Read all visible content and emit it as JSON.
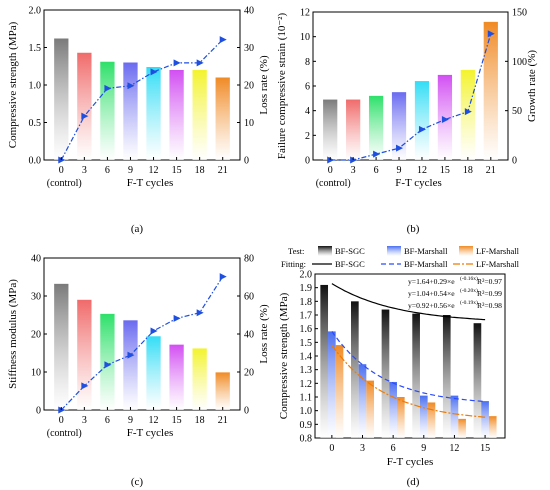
{
  "panels": [
    {
      "caption": "(a)",
      "chart_data": {
        "type": "bar",
        "title": "",
        "xlabel": "F-T cycles",
        "ylabel": "Compressive strength (MPa)",
        "y2label": "Loss rate (%)",
        "categories": [
          "0",
          "3",
          "6",
          "9",
          "12",
          "15",
          "18",
          "21"
        ],
        "xsub": "(control)",
        "ylim": [
          0,
          2.0
        ],
        "yticks": [
          "0.0",
          "0.5",
          "1.0",
          "1.5",
          "2.0"
        ],
        "y2lim": [
          0,
          40
        ],
        "y2ticks": [
          "0",
          "10",
          "20",
          "30",
          "40"
        ],
        "series": [
          {
            "kind": "bar",
            "values": [
              1.62,
              1.43,
              1.31,
              1.3,
              1.24,
              1.2,
              1.2,
              1.1
            ]
          },
          {
            "kind": "line",
            "axis": "right",
            "values": [
              0,
              11.7,
              19.1,
              19.8,
              23.5,
              25.9,
              25.9,
              32.1
            ]
          }
        ]
      }
    },
    {
      "caption": "(b)",
      "chart_data": {
        "type": "bar",
        "title": "",
        "xlabel": "F-T cycles",
        "ylabel": "Failure compressive strain (10⁻²)",
        "y2label": "Growth rate (%)",
        "categories": [
          "0",
          "3",
          "6",
          "9",
          "12",
          "15",
          "18",
          "21"
        ],
        "xsub": "(control)",
        "ylim": [
          0,
          12
        ],
        "yticks": [
          "0",
          "2",
          "4",
          "6",
          "8",
          "10",
          "12"
        ],
        "y2lim": [
          0,
          150
        ],
        "y2ticks": [
          "0",
          "50",
          "100",
          "150"
        ],
        "series": [
          {
            "kind": "bar",
            "values": [
              4.9,
              4.9,
              5.2,
              5.5,
              6.4,
              6.9,
              7.3,
              11.2
            ]
          },
          {
            "kind": "line",
            "axis": "right",
            "values": [
              0,
              0,
              6,
              12,
              31,
              41,
              49,
              128
            ]
          }
        ]
      }
    },
    {
      "caption": "(c)",
      "chart_data": {
        "type": "bar",
        "title": "",
        "xlabel": "F-T cycles",
        "ylabel": "Stiffness modulus (MPa)",
        "y2label": "Loss rate (%)",
        "categories": [
          "0",
          "3",
          "6",
          "9",
          "12",
          "15",
          "18",
          "21"
        ],
        "xsub": "(control)",
        "ylim": [
          0,
          40
        ],
        "yticks": [
          "0",
          "10",
          "20",
          "30",
          "40"
        ],
        "y2lim": [
          0,
          80
        ],
        "y2ticks": [
          "0",
          "20",
          "40",
          "60",
          "80"
        ],
        "series": [
          {
            "kind": "bar",
            "values": [
              33.2,
              29.0,
              25.3,
              23.6,
              19.4,
              17.2,
              16.2,
              9.9
            ]
          },
          {
            "kind": "line",
            "axis": "right",
            "values": [
              0,
              12.7,
              23.8,
              28.9,
              41.6,
              48.2,
              51.2,
              70.2
            ]
          }
        ]
      }
    },
    {
      "caption": "(d)",
      "chart_data": {
        "type": "bar",
        "title": "",
        "xlabel": "F-T cycles",
        "ylabel": "Compressive strength (MPa)",
        "categories": [
          "0",
          "3",
          "6",
          "9",
          "12",
          "15"
        ],
        "ylim": [
          0.8,
          2.0
        ],
        "yticks": [
          "0.8",
          "0.9",
          "1.0",
          "1.1",
          "1.2",
          "1.3",
          "1.4",
          "1.5",
          "1.6",
          "1.7",
          "1.8",
          "1.9",
          "2.0"
        ],
        "legend_test_label": "Test:",
        "legend_fit_label": "Fitting:",
        "series": [
          {
            "name": "BF-SGC",
            "color": "#111111",
            "values": [
              1.92,
              1.8,
              1.74,
              1.71,
              1.7,
              1.64
            ]
          },
          {
            "name": "BF-Marshall",
            "color": "#4a6ef0",
            "values": [
              1.58,
              1.34,
              1.21,
              1.11,
              1.11,
              1.07
            ]
          },
          {
            "name": "LF-Marshall",
            "color": "#f08a24",
            "values": [
              1.48,
              1.22,
              1.1,
              1.06,
              0.94,
              0.96
            ]
          }
        ],
        "fits": [
          {
            "name": "BF-SGC",
            "color": "#000000",
            "dash": "",
            "a": 1.64,
            "b": 0.29,
            "c": 0.16,
            "eq": "y=1.64+0.29×e",
            "exp": "(-0.16x)",
            "r2": "R²=0.97"
          },
          {
            "name": "BF-Marshall",
            "color": "#2a4bff",
            "dash": "5,3",
            "a": 1.04,
            "b": 0.54,
            "c": 0.2,
            "eq": "y=1.04+0.54×e",
            "exp": "(-0.20x)",
            "r2": "R²=0.99"
          },
          {
            "name": "LF-Marshall",
            "color": "#f07a00",
            "dash": "7,2,2,2",
            "a": 0.92,
            "b": 0.56,
            "c": 0.19,
            "eq": "y=0.92+0.56×e",
            "exp": "(-0.19x)",
            "r2": "R²=0.98"
          }
        ]
      }
    }
  ],
  "colors": {
    "bars": [
      "#7a7a7a",
      "#f06a6a",
      "#2ee06a",
      "#6a6af0",
      "#33ddf5",
      "#d24ff2",
      "#f3f32e",
      "#f08a24"
    ],
    "line": "#1f4fe0"
  }
}
